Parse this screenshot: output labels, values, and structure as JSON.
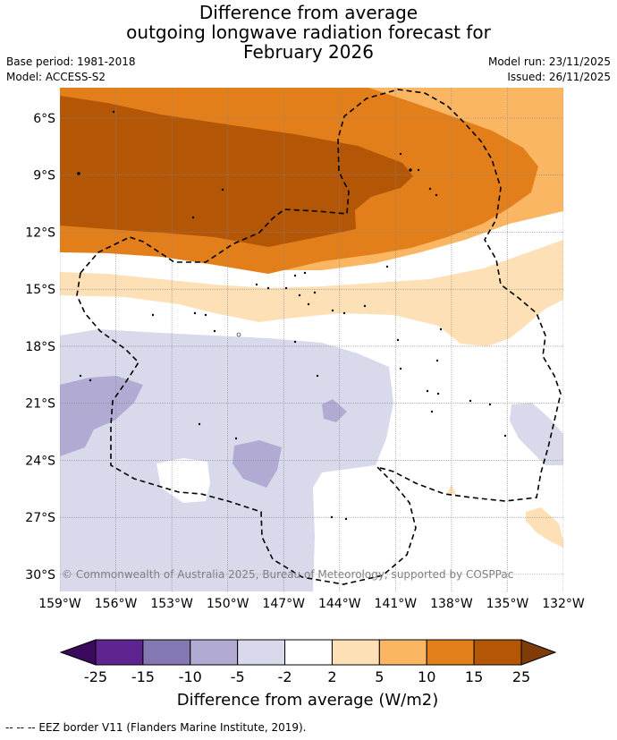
{
  "header": {
    "title_line1": "Difference from average",
    "title_line2": "outgoing longwave radiation forecast for",
    "title_line3": "February 2026",
    "base_period": "Base period: 1981-2018",
    "model": "Model: ACCESS-S2",
    "model_run": "Model run: 23/11/2025",
    "issued": "Issued: 26/11/2025"
  },
  "chart_data": {
    "type": "heatmap",
    "title": "Difference from average outgoing longwave radiation forecast for February 2026",
    "x_axis": {
      "ticks": [
        "159°W",
        "156°W",
        "153°W",
        "150°W",
        "147°W",
        "144°W",
        "141°W",
        "138°W",
        "135°W",
        "132°W"
      ],
      "range": [
        -159,
        -132
      ]
    },
    "y_axis": {
      "ticks": [
        "6°S",
        "9°S",
        "12°S",
        "15°S",
        "18°S",
        "21°S",
        "24°S",
        "27°S",
        "30°S"
      ],
      "range": [
        -4.4,
        -30.9
      ]
    },
    "colorbar": {
      "label": "Difference from average (W/m2)",
      "tick_labels": [
        "-25",
        "-15",
        "-10",
        "-5",
        "-2",
        "2",
        "5",
        "10",
        "15",
        "25"
      ],
      "bins": [
        {
          "lo": null,
          "hi": -25,
          "color": "#3b0a5c"
        },
        {
          "lo": -25,
          "hi": -15,
          "color": "#5e2590"
        },
        {
          "lo": -15,
          "hi": -10,
          "color": "#8577b2"
        },
        {
          "lo": -10,
          "hi": -5,
          "color": "#b1aad3"
        },
        {
          "lo": -5,
          "hi": -2,
          "color": "#d9d9ec"
        },
        {
          "lo": -2,
          "hi": 2,
          "color": "#ffffff"
        },
        {
          "lo": 2,
          "hi": 5,
          "color": "#fde0b5"
        },
        {
          "lo": 5,
          "hi": 10,
          "color": "#fbb663"
        },
        {
          "lo": 10,
          "hi": 15,
          "color": "#e37f1b"
        },
        {
          "lo": 15,
          "hi": 25,
          "color": "#b35706"
        },
        {
          "lo": 25,
          "hi": null,
          "color": "#7f3b08"
        }
      ]
    },
    "copyright": "© Commonwealth of Australia 2025, Bureau of Meteorology, supported by COSPPac"
  },
  "footer": {
    "legend_note": "--  --  -- EEZ border V11 (Flanders Marine Institute, 2019)."
  }
}
